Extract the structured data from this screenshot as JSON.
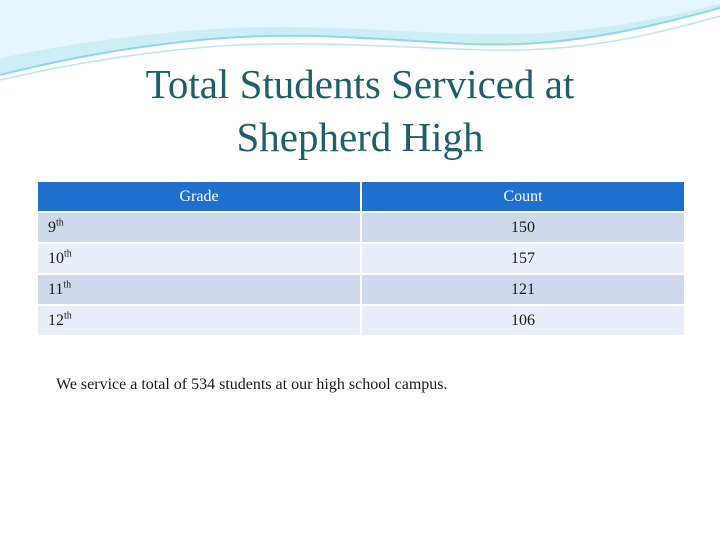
{
  "title": {
    "line1": "Total Students Serviced at",
    "line2": "Shepherd High"
  },
  "table": {
    "headers": [
      "Grade",
      "Count"
    ],
    "rows": [
      {
        "grade_num": "9",
        "grade_suffix": "th",
        "count": "150"
      },
      {
        "grade_num": "10",
        "grade_suffix": "th",
        "count": "157"
      },
      {
        "grade_num": "11",
        "grade_suffix": "th",
        "count": "121"
      },
      {
        "grade_num": "12",
        "grade_suffix": "th",
        "count": "106"
      }
    ]
  },
  "footer_text": "We service a total of 534 students at our high school campus.",
  "colors": {
    "title": "#1f5f6b",
    "header_bg": "#1f6fcf",
    "row_odd": "#cfd9ec",
    "row_even": "#e8edf7",
    "wave_accent": "#7fd3e6"
  }
}
